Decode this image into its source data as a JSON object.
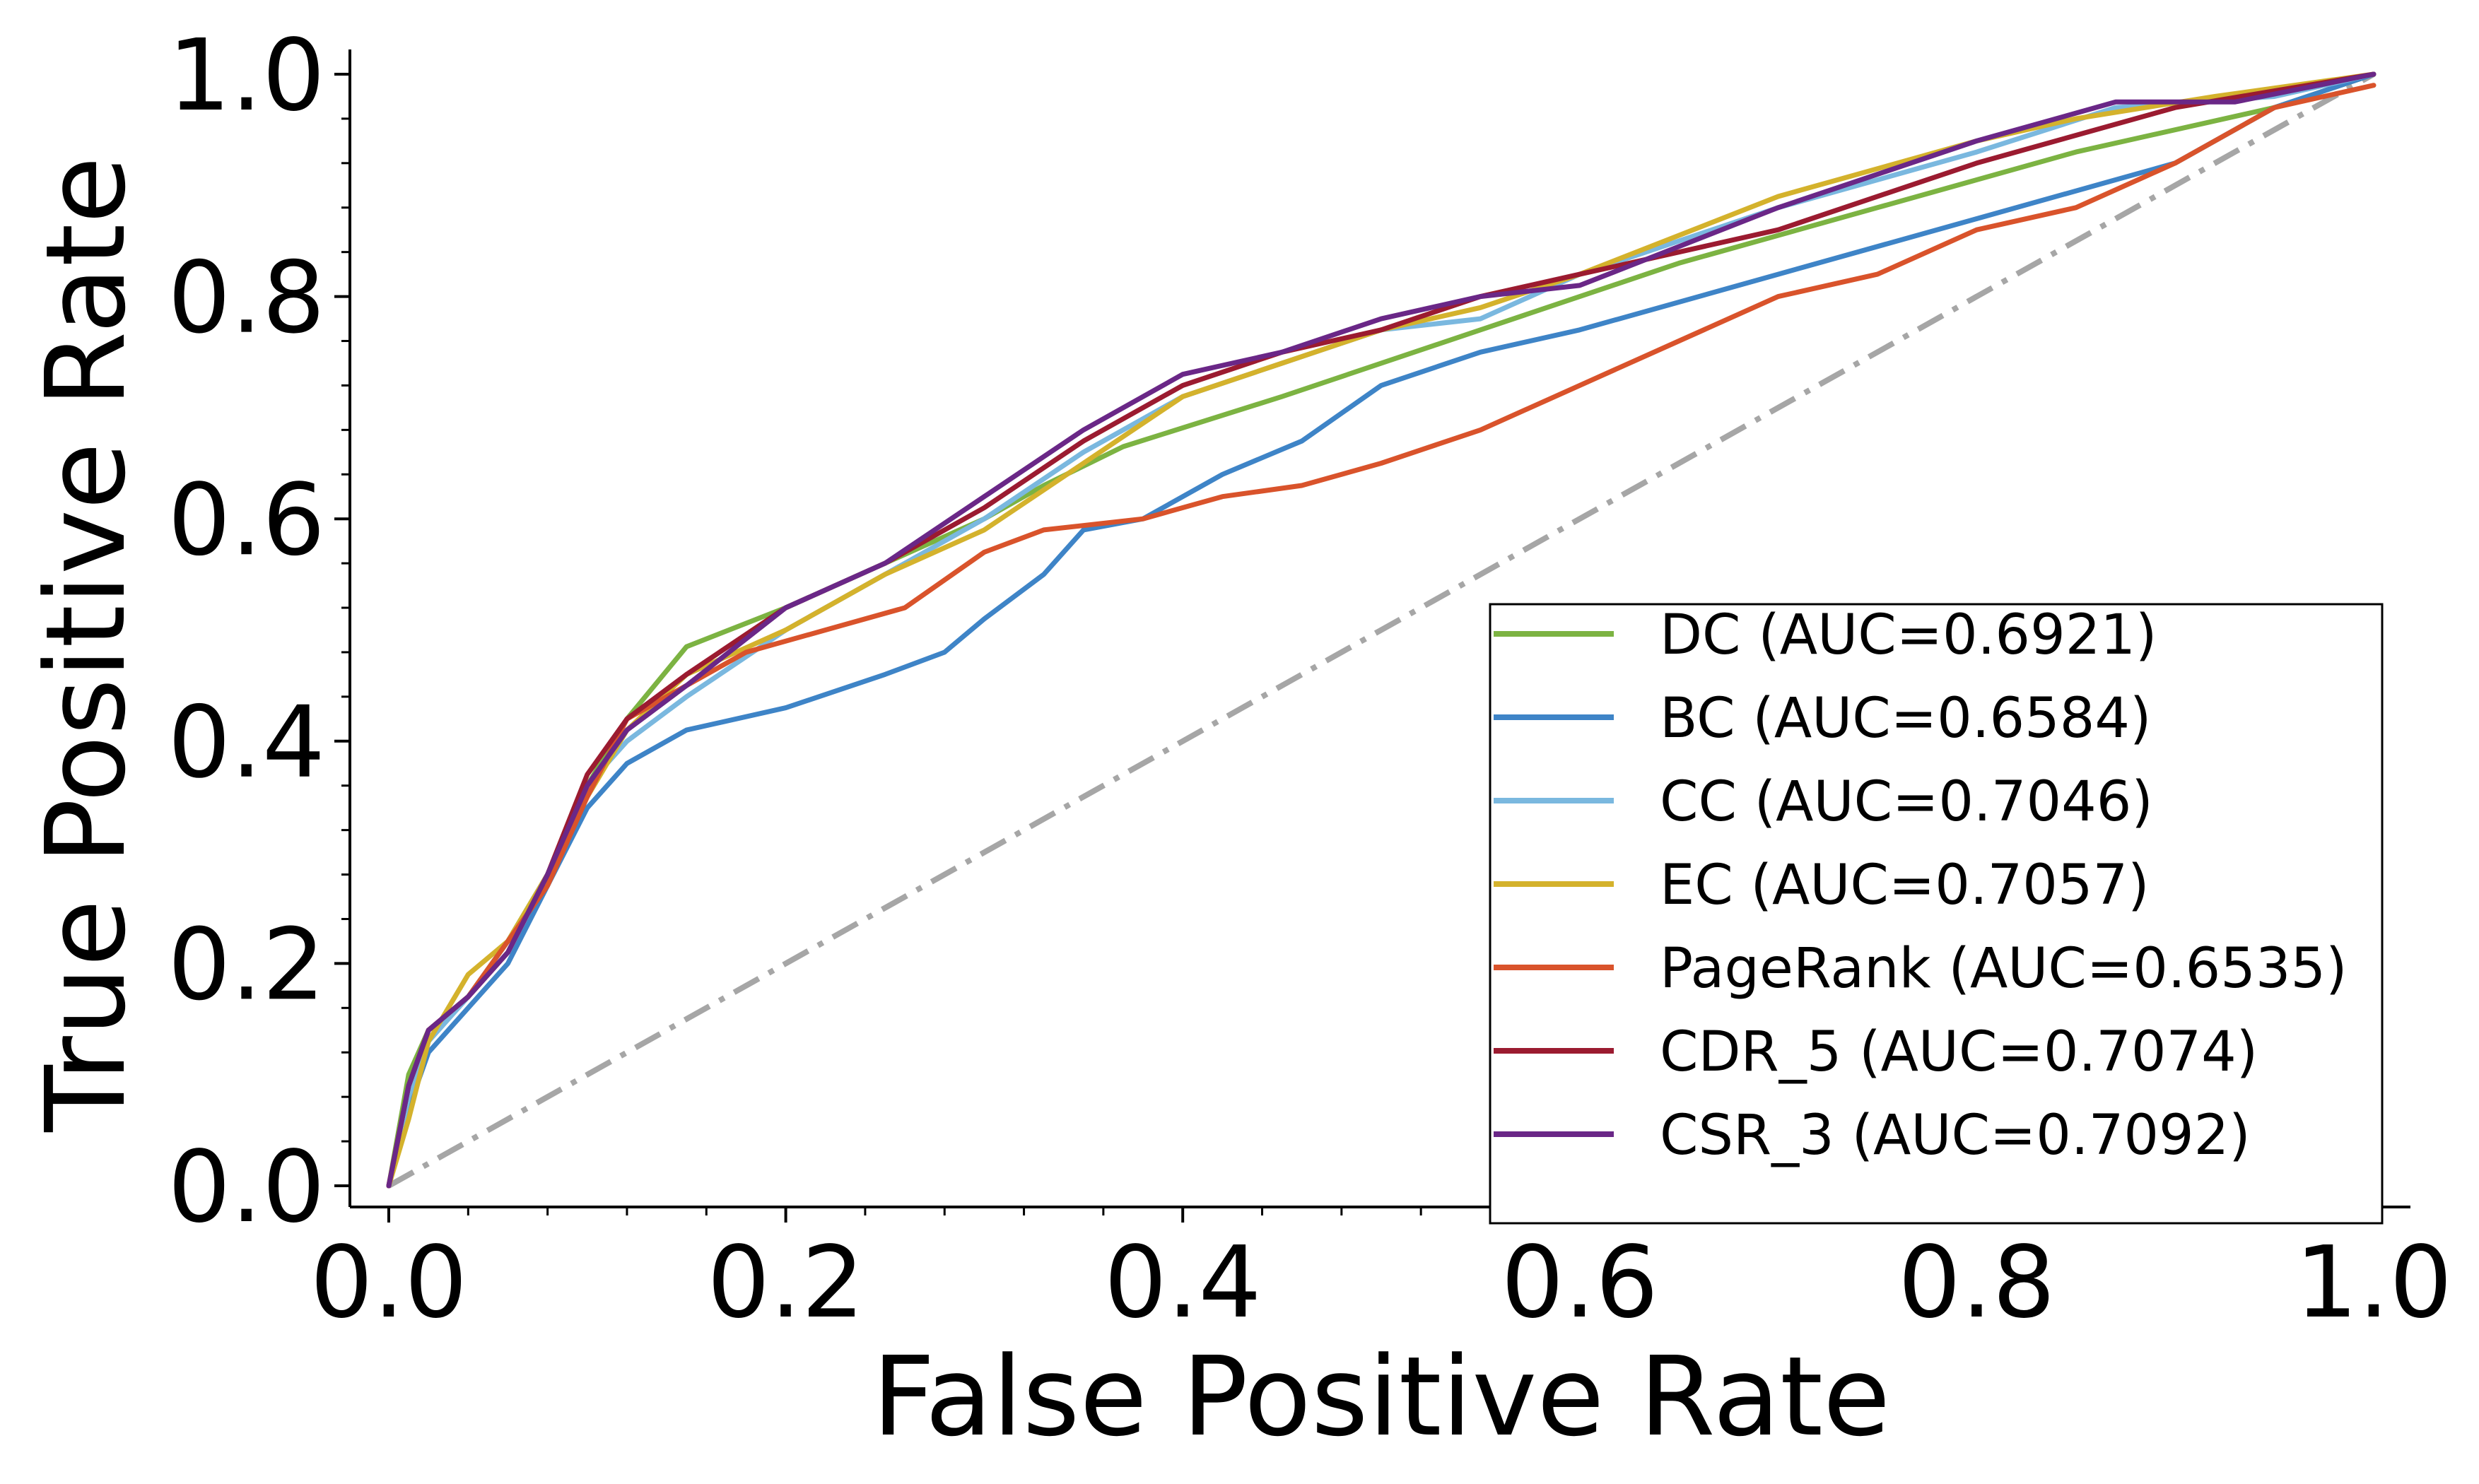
{
  "chart_data": {
    "type": "line",
    "xlabel": "False Positive Rate",
    "ylabel": "True Positive Rate",
    "xlim": [
      0.0,
      1.0
    ],
    "ylim": [
      0.0,
      1.0
    ],
    "xticks": [
      "0.0",
      "0.2",
      "0.4",
      "0.6",
      "0.8",
      "1.0"
    ],
    "yticks": [
      "0.0",
      "0.2",
      "0.4",
      "0.6",
      "0.8",
      "1.0"
    ],
    "grid": false,
    "legend_position": "lower-right",
    "diagonal_reference": {
      "x": [
        0,
        1
      ],
      "y": [
        0,
        1
      ],
      "color": "#a6a6a6",
      "style": "dash-dot"
    },
    "series": [
      {
        "name": "DC (AUC=0.6921)",
        "color": "#7cb342",
        "x": [
          0,
          0.01,
          0.02,
          0.04,
          0.06,
          0.08,
          0.1,
          0.12,
          0.15,
          0.2,
          0.25,
          0.3,
          0.33,
          0.37,
          0.45,
          0.55,
          0.65,
          0.75,
          0.85,
          0.95,
          1.0
        ],
        "y": [
          0,
          0.1,
          0.14,
          0.17,
          0.22,
          0.28,
          0.36,
          0.42,
          0.485,
          0.52,
          0.56,
          0.6,
          0.63,
          0.665,
          0.71,
          0.77,
          0.83,
          0.88,
          0.93,
          0.97,
          1.0
        ]
      },
      {
        "name": "BC (AUC=0.6584)",
        "color": "#3e84c7",
        "x": [
          0,
          0.01,
          0.02,
          0.04,
          0.06,
          0.08,
          0.1,
          0.12,
          0.15,
          0.2,
          0.25,
          0.28,
          0.3,
          0.33,
          0.35,
          0.38,
          0.42,
          0.46,
          0.5,
          0.55,
          0.6,
          0.7,
          0.8,
          0.9,
          0.95,
          1.0
        ],
        "y": [
          0,
          0.07,
          0.12,
          0.16,
          0.2,
          0.27,
          0.34,
          0.38,
          0.41,
          0.43,
          0.46,
          0.48,
          0.51,
          0.55,
          0.59,
          0.6,
          0.64,
          0.67,
          0.72,
          0.75,
          0.77,
          0.82,
          0.87,
          0.92,
          0.97,
          1.0
        ]
      },
      {
        "name": "CC (AUC=0.7046)",
        "color": "#7ab8df",
        "x": [
          0,
          0.01,
          0.02,
          0.04,
          0.06,
          0.08,
          0.1,
          0.12,
          0.15,
          0.2,
          0.25,
          0.3,
          0.35,
          0.4,
          0.45,
          0.5,
          0.55,
          0.6,
          0.7,
          0.8,
          0.87,
          0.95,
          1.0
        ],
        "y": [
          0,
          0.08,
          0.13,
          0.17,
          0.22,
          0.28,
          0.36,
          0.4,
          0.44,
          0.5,
          0.55,
          0.6,
          0.66,
          0.71,
          0.74,
          0.77,
          0.78,
          0.82,
          0.88,
          0.93,
          0.97,
          0.98,
          1.0
        ]
      },
      {
        "name": "EC (AUC=0.7057)",
        "color": "#d4b22c",
        "x": [
          0,
          0.01,
          0.02,
          0.04,
          0.06,
          0.08,
          0.1,
          0.12,
          0.15,
          0.2,
          0.25,
          0.3,
          0.35,
          0.4,
          0.45,
          0.5,
          0.55,
          0.6,
          0.7,
          0.8,
          0.85,
          0.92,
          1.0
        ],
        "y": [
          0,
          0.06,
          0.13,
          0.19,
          0.22,
          0.28,
          0.35,
          0.41,
          0.46,
          0.5,
          0.55,
          0.59,
          0.65,
          0.71,
          0.74,
          0.77,
          0.79,
          0.82,
          0.89,
          0.94,
          0.96,
          0.98,
          1.0
        ]
      },
      {
        "name": "PageRank (AUC=0.6535)",
        "color": "#d9532b",
        "x": [
          0,
          0.01,
          0.02,
          0.04,
          0.06,
          0.08,
          0.1,
          0.12,
          0.15,
          0.18,
          0.22,
          0.26,
          0.3,
          0.33,
          0.38,
          0.42,
          0.46,
          0.5,
          0.55,
          0.6,
          0.65,
          0.7,
          0.75,
          0.8,
          0.85,
          0.9,
          0.95,
          1.0
        ],
        "y": [
          0,
          0.09,
          0.14,
          0.17,
          0.22,
          0.27,
          0.35,
          0.42,
          0.45,
          0.48,
          0.5,
          0.52,
          0.57,
          0.59,
          0.6,
          0.62,
          0.63,
          0.65,
          0.68,
          0.72,
          0.76,
          0.8,
          0.82,
          0.86,
          0.88,
          0.92,
          0.97,
          0.99
        ]
      },
      {
        "name": "CDR_5 (AUC=0.7074)",
        "color": "#9b1b30",
        "x": [
          0,
          0.01,
          0.02,
          0.04,
          0.06,
          0.08,
          0.1,
          0.12,
          0.15,
          0.2,
          0.25,
          0.3,
          0.35,
          0.4,
          0.45,
          0.5,
          0.55,
          0.6,
          0.65,
          0.7,
          0.8,
          0.9,
          1.0
        ],
        "y": [
          0,
          0.09,
          0.14,
          0.17,
          0.21,
          0.28,
          0.37,
          0.42,
          0.46,
          0.52,
          0.56,
          0.61,
          0.67,
          0.72,
          0.75,
          0.77,
          0.8,
          0.82,
          0.84,
          0.86,
          0.92,
          0.97,
          1.0
        ]
      },
      {
        "name": "CSR_3 (AUC=0.7092)",
        "color": "#6a2787",
        "x": [
          0,
          0.01,
          0.02,
          0.04,
          0.06,
          0.08,
          0.1,
          0.12,
          0.15,
          0.2,
          0.25,
          0.3,
          0.35,
          0.4,
          0.45,
          0.5,
          0.55,
          0.6,
          0.7,
          0.8,
          0.87,
          0.93,
          1.0
        ],
        "y": [
          0,
          0.09,
          0.14,
          0.17,
          0.21,
          0.28,
          0.36,
          0.41,
          0.45,
          0.52,
          0.56,
          0.62,
          0.68,
          0.73,
          0.75,
          0.78,
          0.8,
          0.81,
          0.88,
          0.94,
          0.975,
          0.975,
          1.0
        ]
      }
    ]
  }
}
